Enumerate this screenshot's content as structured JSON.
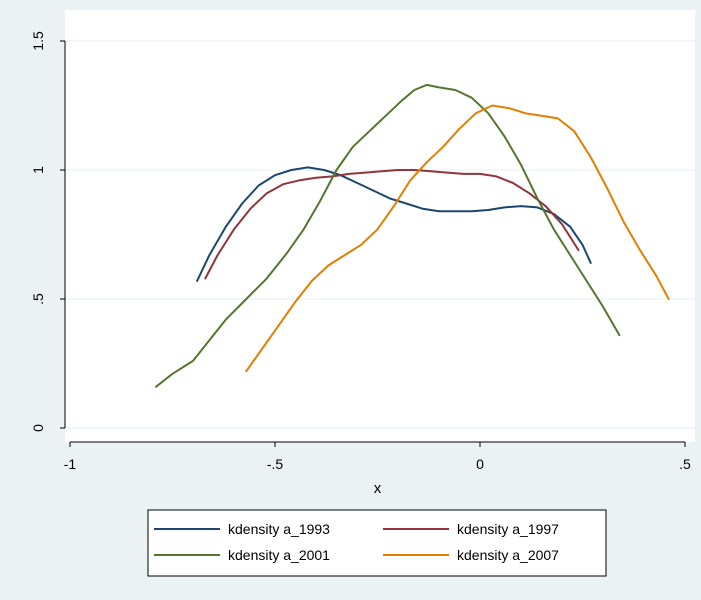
{
  "chart_data": {
    "type": "line",
    "title": "",
    "xlabel": "x",
    "ylabel": "",
    "xlim": [
      -1,
      0.5
    ],
    "ylim": [
      0,
      1.5
    ],
    "x_ticks": [
      -1,
      -0.5,
      0,
      0.5
    ],
    "x_tick_labels": [
      "-1",
      "-.5",
      "0",
      ".5"
    ],
    "y_ticks": [
      0,
      0.5,
      1,
      1.5
    ],
    "y_tick_labels": [
      "0",
      ".5",
      "1",
      "1.5"
    ],
    "grid": true,
    "legend_position": "bottom",
    "colors": {
      "background": "#eaf2f3",
      "plot_area": "#ffffff",
      "grid": "#eaf2f3",
      "legend_box": "#ffffff"
    },
    "series": [
      {
        "name": "kdensity a_1993",
        "color": "#1a476f",
        "points": [
          [
            -0.69,
            0.57
          ],
          [
            -0.66,
            0.67
          ],
          [
            -0.62,
            0.78
          ],
          [
            -0.58,
            0.87
          ],
          [
            -0.54,
            0.94
          ],
          [
            -0.5,
            0.98
          ],
          [
            -0.46,
            1.0
          ],
          [
            -0.42,
            1.01
          ],
          [
            -0.38,
            1.0
          ],
          [
            -0.34,
            0.98
          ],
          [
            -0.3,
            0.95
          ],
          [
            -0.26,
            0.92
          ],
          [
            -0.22,
            0.89
          ],
          [
            -0.18,
            0.87
          ],
          [
            -0.14,
            0.85
          ],
          [
            -0.1,
            0.84
          ],
          [
            -0.06,
            0.84
          ],
          [
            -0.02,
            0.84
          ],
          [
            0.02,
            0.845
          ],
          [
            0.06,
            0.855
          ],
          [
            0.1,
            0.86
          ],
          [
            0.14,
            0.855
          ],
          [
            0.18,
            0.83
          ],
          [
            0.22,
            0.78
          ],
          [
            0.25,
            0.71
          ],
          [
            0.27,
            0.64
          ]
        ]
      },
      {
        "name": "kdensity a_1997",
        "color": "#90353b",
        "points": [
          [
            -0.67,
            0.58
          ],
          [
            -0.64,
            0.67
          ],
          [
            -0.6,
            0.77
          ],
          [
            -0.56,
            0.85
          ],
          [
            -0.52,
            0.91
          ],
          [
            -0.48,
            0.945
          ],
          [
            -0.44,
            0.96
          ],
          [
            -0.4,
            0.97
          ],
          [
            -0.36,
            0.975
          ],
          [
            -0.32,
            0.985
          ],
          [
            -0.28,
            0.99
          ],
          [
            -0.24,
            0.995
          ],
          [
            -0.2,
            1.0
          ],
          [
            -0.16,
            1.0
          ],
          [
            -0.12,
            0.995
          ],
          [
            -0.08,
            0.99
          ],
          [
            -0.04,
            0.985
          ],
          [
            0.0,
            0.985
          ],
          [
            0.04,
            0.975
          ],
          [
            0.08,
            0.95
          ],
          [
            0.12,
            0.91
          ],
          [
            0.16,
            0.86
          ],
          [
            0.2,
            0.79
          ],
          [
            0.24,
            0.69
          ]
        ]
      },
      {
        "name": "kdensity a_2001",
        "color": "#55752f",
        "points": [
          [
            -0.79,
            0.16
          ],
          [
            -0.75,
            0.21
          ],
          [
            -0.7,
            0.26
          ],
          [
            -0.66,
            0.34
          ],
          [
            -0.62,
            0.42
          ],
          [
            -0.57,
            0.5
          ],
          [
            -0.52,
            0.58
          ],
          [
            -0.47,
            0.68
          ],
          [
            -0.43,
            0.77
          ],
          [
            -0.39,
            0.88
          ],
          [
            -0.35,
            1.0
          ],
          [
            -0.31,
            1.09
          ],
          [
            -0.27,
            1.15
          ],
          [
            -0.23,
            1.21
          ],
          [
            -0.19,
            1.27
          ],
          [
            -0.16,
            1.31
          ],
          [
            -0.13,
            1.33
          ],
          [
            -0.1,
            1.32
          ],
          [
            -0.06,
            1.31
          ],
          [
            -0.02,
            1.28
          ],
          [
            0.02,
            1.22
          ],
          [
            0.06,
            1.13
          ],
          [
            0.1,
            1.02
          ],
          [
            0.14,
            0.89
          ],
          [
            0.18,
            0.77
          ],
          [
            0.22,
            0.67
          ],
          [
            0.26,
            0.57
          ],
          [
            0.3,
            0.47
          ],
          [
            0.34,
            0.36
          ]
        ]
      },
      {
        "name": "kdensity a_2007",
        "color": "#e37e00",
        "points": [
          [
            -0.57,
            0.22
          ],
          [
            -0.53,
            0.31
          ],
          [
            -0.49,
            0.4
          ],
          [
            -0.45,
            0.49
          ],
          [
            -0.41,
            0.57
          ],
          [
            -0.37,
            0.63
          ],
          [
            -0.33,
            0.67
          ],
          [
            -0.29,
            0.71
          ],
          [
            -0.25,
            0.77
          ],
          [
            -0.21,
            0.86
          ],
          [
            -0.17,
            0.96
          ],
          [
            -0.13,
            1.03
          ],
          [
            -0.09,
            1.09
          ],
          [
            -0.05,
            1.16
          ],
          [
            -0.01,
            1.22
          ],
          [
            0.03,
            1.25
          ],
          [
            0.07,
            1.24
          ],
          [
            0.11,
            1.22
          ],
          [
            0.15,
            1.21
          ],
          [
            0.19,
            1.2
          ],
          [
            0.23,
            1.15
          ],
          [
            0.27,
            1.05
          ],
          [
            0.31,
            0.93
          ],
          [
            0.35,
            0.8
          ],
          [
            0.39,
            0.69
          ],
          [
            0.43,
            0.59
          ],
          [
            0.46,
            0.5
          ]
        ]
      }
    ]
  }
}
